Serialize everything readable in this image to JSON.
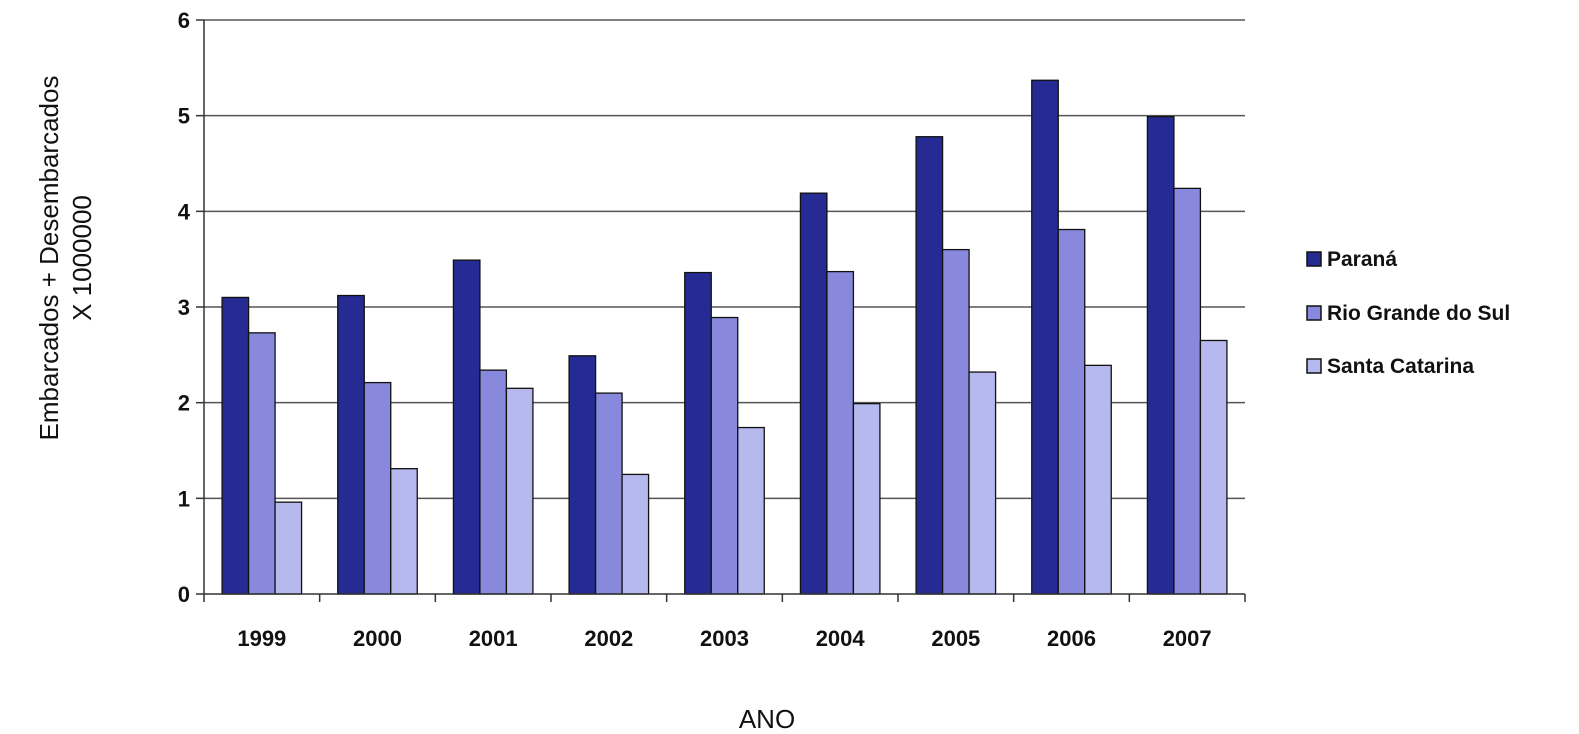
{
  "chart_data": {
    "type": "bar",
    "title": "",
    "xlabel": "ANO",
    "ylabel_line1": "Embarcados + Desembarcados",
    "ylabel_line2": "X 1000000",
    "categories": [
      "1999",
      "2000",
      "2001",
      "2002",
      "2003",
      "2004",
      "2005",
      "2006",
      "2007"
    ],
    "series": [
      {
        "name": "Paraná",
        "color": "#262b94",
        "values": [
          3.1,
          3.12,
          3.49,
          2.49,
          3.36,
          4.19,
          4.78,
          5.37,
          4.99
        ]
      },
      {
        "name": "Rio Grande do Sul",
        "color": "#8889dc",
        "values": [
          2.73,
          2.21,
          2.34,
          2.1,
          2.89,
          3.37,
          3.6,
          3.81,
          4.24
        ]
      },
      {
        "name": "Santa Catarina",
        "color": "#b6b9ed",
        "values": [
          0.96,
          1.31,
          2.15,
          1.25,
          1.74,
          1.99,
          2.32,
          2.39,
          2.65
        ]
      }
    ],
    "ylim": [
      0,
      6
    ],
    "yticks": [
      "0",
      "1",
      "2",
      "3",
      "4",
      "5",
      "6"
    ],
    "grid": true,
    "legend_position": "right"
  }
}
